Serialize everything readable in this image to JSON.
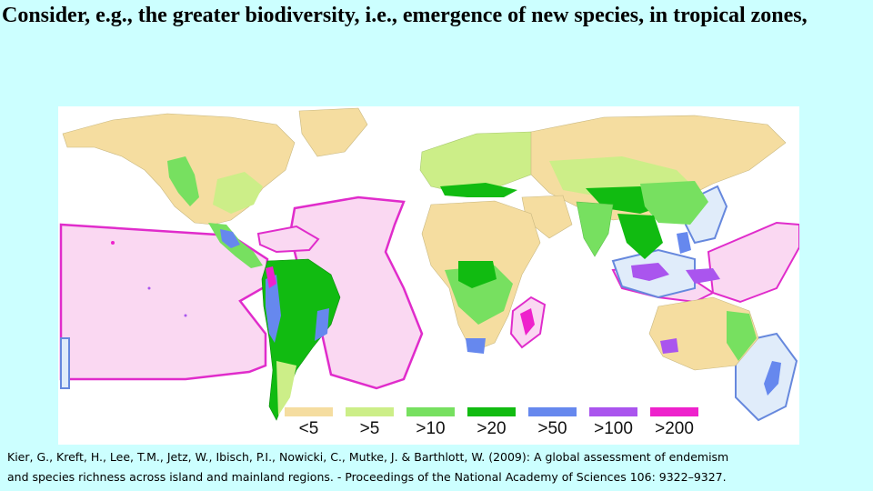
{
  "slide": {
    "title": "Consider, e.g., the greater biodiversity, i.e., emergence of new species, in tropical zones,"
  },
  "map": {
    "colors": {
      "ocean": "#ffffff",
      "lt5": "#f5dda0",
      "gt5": "#ccee88",
      "gt10": "#77e060",
      "gt20": "#11bb11",
      "gt50": "#6688ee",
      "gt100": "#aa55ee",
      "gt200": "#ee22cc",
      "ocean_region_fill": "#fad8f2",
      "ocean_region_stroke": "#e02ccb",
      "blue_region_fill": "#e0ecfa",
      "blue_region_stroke": "#6688dd"
    },
    "legend": [
      {
        "label": "<5",
        "color": "#f5dda0"
      },
      {
        "label": ">5",
        "color": "#ccee88"
      },
      {
        "label": ">10",
        "color": "#77e060"
      },
      {
        "label": ">20",
        "color": "#11bb11"
      },
      {
        "label": ">50",
        "color": "#6688ee"
      },
      {
        "label": ">100",
        "color": "#aa55ee"
      },
      {
        "label": ">200",
        "color": "#ee22cc"
      }
    ]
  },
  "citation": {
    "line1": "Kier, G., Kreft, H., Lee, T.M., Jetz, W., Ibisch, P.I., Nowicki, C., Mutke, J. & Barthlott, W. (2009): A global assessment of endemism",
    "line2": "and species richness across island and mainland regions. - Proceedings of the National Academy of Sciences 106: 9322–9327."
  }
}
